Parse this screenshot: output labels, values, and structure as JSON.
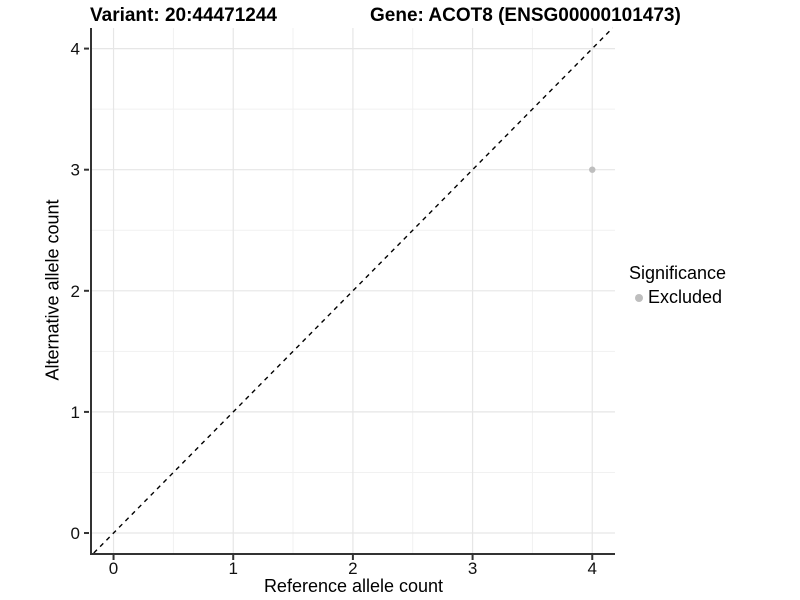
{
  "header": {
    "title_left": "Variant: 20:44471244",
    "title_right": "Gene: ACOT8 (ENSG00000101473)"
  },
  "chart_data": {
    "type": "scatter",
    "title_left": "Variant: 20:44471244",
    "title_right": "Gene: ACOT8 (ENSG00000101473)",
    "xlabel": "Reference allele count",
    "ylabel": "Alternative allele count",
    "xlim": [
      -0.18,
      4.19
    ],
    "ylim": [
      -0.165,
      4.17
    ],
    "xticks": [
      0,
      1,
      2,
      3,
      4
    ],
    "yticks": [
      0,
      1,
      2,
      3,
      4
    ],
    "minor_ticks_x": [
      0.5,
      1.5,
      2.5,
      3.5
    ],
    "minor_ticks_y": [
      0.5,
      1.5,
      2.5,
      3.5
    ],
    "grid": true,
    "series": [
      {
        "name": "Excluded",
        "color": "#bebebe",
        "points": [
          {
            "x": 4,
            "y": 3
          }
        ]
      }
    ],
    "reference_line": {
      "type": "identity",
      "slope": 1,
      "intercept": 0,
      "style": "dashed",
      "color": "#000000"
    },
    "legend": {
      "title": "Significance",
      "position": "right",
      "entries": [
        {
          "label": "Excluded",
          "color": "#bebebe"
        }
      ]
    }
  },
  "colors": {
    "background": "#ffffff",
    "grid_major": "#e6e6e6",
    "grid_minor": "#f1f1f1",
    "axis_line": "#333333",
    "tick_text": "#111111",
    "point": "#bebebe"
  }
}
